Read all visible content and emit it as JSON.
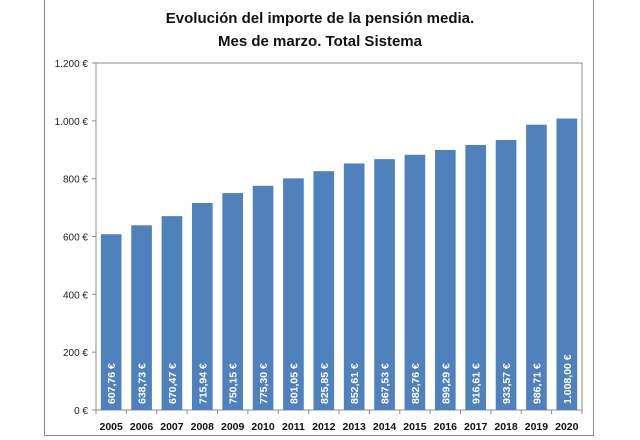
{
  "chart_data": {
    "type": "bar",
    "title": [
      "Evolución del importe de la pensión media.",
      "Mes de marzo. Total Sistema"
    ],
    "xlabel": "",
    "ylabel": "",
    "categories": [
      "2005",
      "2006",
      "2007",
      "2008",
      "2009",
      "2010",
      "2011",
      "2012",
      "2013",
      "2014",
      "2015",
      "2016",
      "2017",
      "2018",
      "2019",
      "2020"
    ],
    "values": [
      607.76,
      638.73,
      670.47,
      715.94,
      750.15,
      775.3,
      801.05,
      825.85,
      852.61,
      867.53,
      882.76,
      899.29,
      916.61,
      933.57,
      986.71,
      1008.0
    ],
    "data_labels": [
      "607,76 €",
      "638,73 €",
      "670,47 €",
      "715,94 €",
      "750,15 €",
      "775,30 €",
      "801,05 €",
      "825,85 €",
      "852,61 €",
      "867,53 €",
      "882,76 €",
      "899,29 €",
      "916,61 €",
      "933,57 €",
      "986,71 €",
      "1.008,00 €"
    ],
    "ylim": [
      0,
      1200
    ],
    "yticks": [
      0,
      200,
      400,
      600,
      800,
      1000,
      1200
    ],
    "ytick_labels": [
      "0 €",
      "200 €",
      "400 €",
      "600 €",
      "800 €",
      "1.000 €",
      "1.200 €"
    ],
    "grid": false,
    "legend": "none",
    "bar_color": "#4f81bd"
  }
}
